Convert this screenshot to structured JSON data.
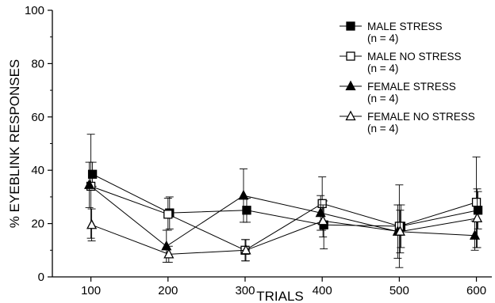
{
  "chart_data": {
    "type": "line",
    "xlabel": "TRIALS",
    "ylabel": "% EYEBLINK RESPONSES",
    "x": [
      100,
      200,
      300,
      400,
      500,
      600
    ],
    "x_tick_labels": [
      "100",
      "200",
      "300",
      "400",
      "500",
      "600"
    ],
    "y_tick_labels": [
      "0",
      "20",
      "40",
      "60",
      "80",
      "100"
    ],
    "xlim": [
      50,
      620
    ],
    "ylim": [
      0,
      100
    ],
    "grid": false,
    "legend_position": "top-right",
    "series": [
      {
        "name": "MALE STRESS",
        "subtitle": "(n = 4)",
        "marker": "filled-square",
        "values": [
          38.5,
          24,
          25,
          19.5,
          19,
          25
        ],
        "errors": [
          4.5,
          6,
          4.5,
          9,
          8,
          7
        ]
      },
      {
        "name": "MALE NO STRESS",
        "subtitle": "(n = 4)",
        "marker": "open-square",
        "values": [
          34,
          23.5,
          10,
          27.5,
          19,
          28
        ],
        "errors": [
          19.5,
          6,
          4,
          10,
          15.5,
          17
        ]
      },
      {
        "name": "FEMALE STRESS",
        "subtitle": "(n = 4)",
        "marker": "filled-triangle",
        "values": [
          34.5,
          11.5,
          30.5,
          24,
          17,
          15.5
        ],
        "errors": [
          8.5,
          6,
          10,
          6.5,
          10,
          5.5
        ]
      },
      {
        "name": "FEMALE NO STRESS",
        "subtitle": "(n = 4)",
        "marker": "open-triangle",
        "values": [
          19.5,
          8.5,
          10,
          21,
          17,
          22
        ],
        "errors": [
          6,
          3,
          4,
          6,
          8,
          11
        ]
      }
    ]
  }
}
